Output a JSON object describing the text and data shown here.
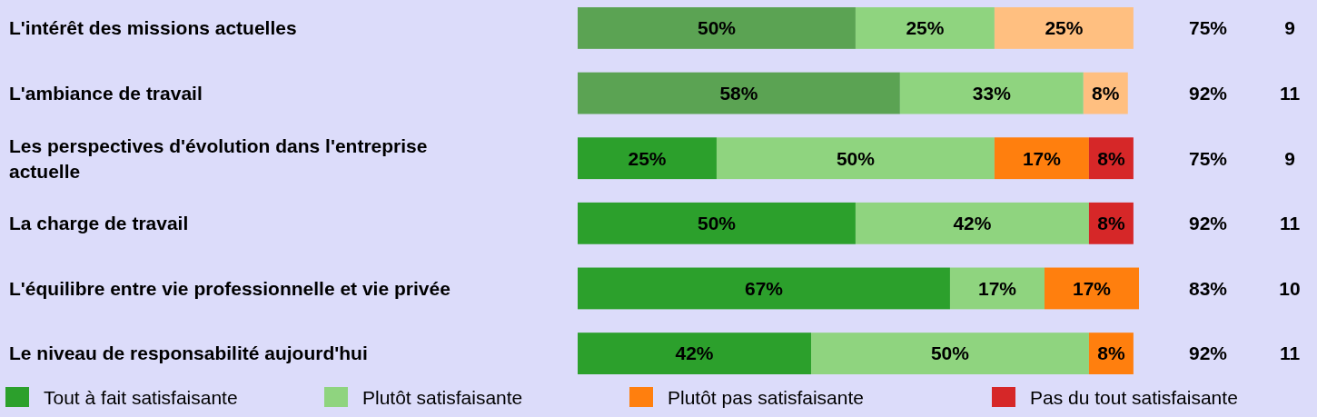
{
  "chart_data": {
    "type": "bar",
    "orientation": "horizontal",
    "stacked": true,
    "xlim": [
      0,
      101
    ],
    "tick_labels": "y",
    "legend": "bottom",
    "categories": [
      "L'intérêt des missions actuelles",
      "L'ambiance de travail",
      "Les perspectives d'évolution dans l'entreprise actuelle",
      "La charge de travail",
      "L'équilibre entre vie professionnelle et vie privée",
      "Le niveau de responsabilité aujourd'hui"
    ],
    "series": [
      {
        "name": "Tout à fait satisfaisante",
        "color": "#2ca02c",
        "colors": [
          "#5ba353",
          "#5ba353",
          "#2ca02c",
          "#2ca02c",
          "#2ca02c",
          "#2ca02c"
        ],
        "values": [
          50,
          58,
          25,
          50,
          67,
          42
        ],
        "value_labels": [
          "50%",
          "58%",
          "25%",
          "50%",
          "67%",
          "42%"
        ]
      },
      {
        "name": "Plutôt satisfaisante",
        "color": "#8fd47f",
        "colors": [
          "#8fd47f",
          "#8fd47f",
          "#8fd47f",
          "#8fd47f",
          "#8fd47f",
          "#8fd47f"
        ],
        "values": [
          25,
          33,
          50,
          42,
          17,
          50
        ],
        "value_labels": [
          "25%",
          "33%",
          "50%",
          "42%",
          "17%",
          "50%"
        ]
      },
      {
        "name": "Plutôt pas satisfaisante",
        "color": "#ff7f0e",
        "colors": [
          "#ffbf80",
          "#ffbf80",
          "#ff7f0e",
          null,
          "#ff7f0e",
          "#ff7f0e"
        ],
        "values": [
          25,
          8,
          17,
          null,
          17,
          8
        ],
        "value_labels": [
          "25%",
          "8%",
          "17%",
          null,
          "17%",
          "8%"
        ]
      },
      {
        "name": "Pas du tout satisfaisante",
        "color": "#d62728",
        "colors": [
          null,
          null,
          "#d62728",
          "#d62728",
          null,
          null
        ],
        "values": [
          null,
          null,
          8,
          8,
          null,
          null
        ],
        "value_labels": [
          null,
          null,
          "8%",
          "8%",
          null,
          null
        ]
      }
    ],
    "annotations": [
      "75%",
      "9",
      "92%",
      "11",
      "75%",
      "9",
      "92%",
      "11",
      "83%",
      "10",
      "92%",
      "11"
    ]
  }
}
